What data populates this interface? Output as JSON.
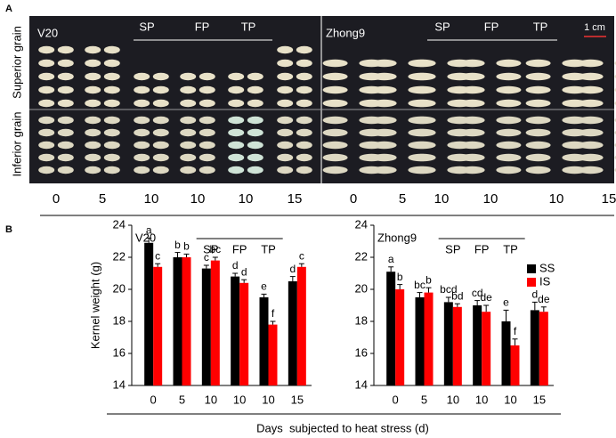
{
  "panel_a": {
    "label": "A",
    "left": {
      "variety": "V20",
      "groups": [
        "SP",
        "FP",
        "TP"
      ]
    },
    "right": {
      "variety": "Zhong9",
      "groups": [
        "SP",
        "FP",
        "TP"
      ],
      "scale_bar": "1 cm"
    },
    "rows": [
      "Superior grain",
      "Inferior grain"
    ],
    "days": [
      "0",
      "5",
      "10",
      "10",
      "10",
      "15",
      "0",
      "5",
      "10",
      "10",
      "10",
      "15"
    ]
  },
  "panel_b_label": "B",
  "xlabel": "Days  subjected to heat stress (d)",
  "chart_data": [
    {
      "type": "bar",
      "title": "V20",
      "ylabel": "Kernel weight (g)",
      "categories": [
        "0",
        "5",
        "10",
        "10",
        "10",
        "15"
      ],
      "category_groups": [
        null,
        null,
        "SP",
        "FP",
        "TP",
        null
      ],
      "ylim": [
        14,
        24
      ],
      "yticks": [
        14,
        16,
        18,
        20,
        22,
        24
      ],
      "series": [
        {
          "color": "#000000",
          "values": [
            22.9,
            22.0,
            21.3,
            20.8,
            19.5,
            20.5
          ],
          "errors": [
            0.3,
            0.3,
            0.2,
            0.2,
            0.2,
            0.3
          ],
          "letters": [
            "a",
            "b",
            "c",
            "d",
            "e",
            "d"
          ]
        },
        {
          "color": "#ff0000",
          "values": [
            21.4,
            22.0,
            21.8,
            20.4,
            17.8,
            21.4
          ],
          "errors": [
            0.2,
            0.2,
            0.2,
            0.2,
            0.2,
            0.2
          ],
          "letters": [
            "c",
            "b",
            "bc",
            "d",
            "f",
            "c"
          ]
        }
      ]
    },
    {
      "type": "bar",
      "title": "Zhong9",
      "categories": [
        "0",
        "5",
        "10",
        "10",
        "10",
        "15"
      ],
      "category_groups": [
        null,
        null,
        "SP",
        "FP",
        "TP",
        null
      ],
      "ylim": [
        14,
        24
      ],
      "yticks": [
        14,
        16,
        18,
        20,
        22,
        24
      ],
      "legend": "upper right",
      "series": [
        {
          "name": "SS",
          "color": "#000000",
          "values": [
            21.1,
            19.5,
            19.2,
            19.0,
            18.0,
            18.7
          ],
          "errors": [
            0.3,
            0.3,
            0.3,
            0.3,
            0.7,
            0.5
          ],
          "letters": [
            "a",
            "bc",
            "bcd",
            "cd",
            "e",
            "d"
          ]
        },
        {
          "name": "IS",
          "color": "#ff0000",
          "values": [
            20.0,
            19.8,
            18.9,
            18.6,
            16.5,
            18.6
          ],
          "errors": [
            0.3,
            0.3,
            0.2,
            0.4,
            0.4,
            0.3
          ],
          "letters": [
            "b",
            "b",
            "bd",
            "de",
            "f",
            "de"
          ]
        }
      ]
    }
  ]
}
